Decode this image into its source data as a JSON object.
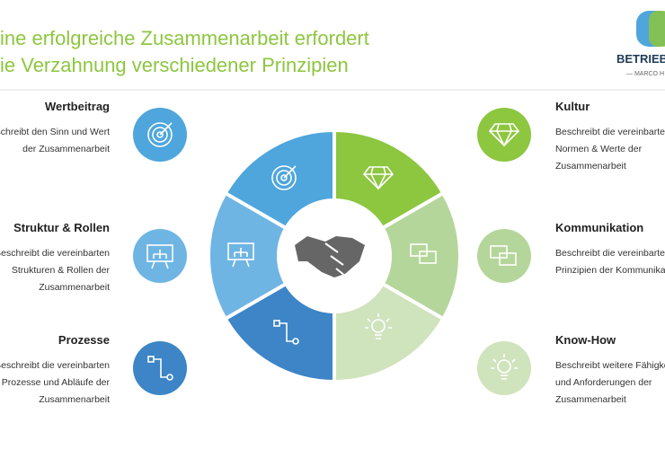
{
  "header": {
    "title_lines": [
      "ine erfolgreiche Zusammenarbeit erfordert",
      "ie Verzahnung verschiedener Prinzipien"
    ]
  },
  "logo": {
    "name": "BETRIEB",
    "subtitle": "— MARCO H"
  },
  "left": [
    {
      "title": "Wertbeitrag",
      "lines": [
        "eschreibt den Sinn und Wert",
        "der Zusammenarbeit"
      ]
    },
    {
      "title": "Struktur & Rollen",
      "lines": [
        "Beschreibt die vereinbarten",
        "Strukturen & Rollen der",
        "Zusammenarbeit"
      ]
    },
    {
      "title": "Prozesse",
      "lines": [
        "Beschreibt die vereinbarten",
        "Prozesse und Abläufe der",
        "Zusammenarbeit"
      ]
    }
  ],
  "right": [
    {
      "title": "Kultur",
      "lines": [
        "Beschreibt die vereinbarten",
        "Normen & Werte der",
        "Zusammenarbeit"
      ]
    },
    {
      "title": "Kommunikation",
      "lines": [
        "Beschreibt die vereinbarten",
        "Prinzipien der Kommunikati"
      ]
    },
    {
      "title": "Know-How",
      "lines": [
        "Beschreibt weitere Fähigkei",
        "und Anforderungen der",
        "Zusammenarbeit"
      ]
    }
  ]
}
